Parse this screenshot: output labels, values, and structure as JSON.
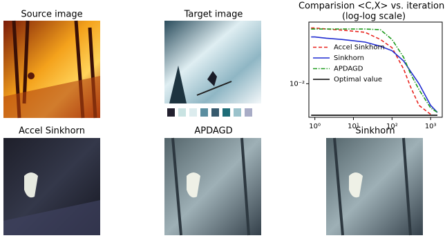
{
  "panels": [
    {
      "title": "Source image"
    },
    {
      "title": "Target image"
    },
    {
      "title": "Accel Sinkhorn"
    },
    {
      "title": "APDAGD"
    },
    {
      "title": "Sinkhorn"
    }
  ],
  "chart_data": {
    "type": "line",
    "title": "Comparision <C,X> vs. iterations",
    "subtitle": "(log-log scale)",
    "x": [
      0.8,
      1,
      2,
      5,
      10,
      20,
      50,
      100,
      200,
      300,
      500,
      1000,
      1500
    ],
    "series": [
      {
        "name": "Accel Sinkhorn",
        "color": "#e8211b",
        "linestyle": "dashed",
        "values": [
          0.027,
          0.027,
          0.0265,
          0.026,
          0.0255,
          0.025,
          0.022,
          0.019,
          0.013,
          0.0095,
          0.0068,
          0.0058,
          null
        ]
      },
      {
        "name": "Sinkhorn",
        "color": "#1f2bd0",
        "linestyle": "solid",
        "values": [
          0.023,
          0.023,
          0.0225,
          0.022,
          0.0215,
          0.021,
          0.0195,
          0.018,
          0.015,
          0.0125,
          0.01,
          0.0068,
          0.006
        ]
      },
      {
        "name": "APDAGD",
        "color": "#1c9a1c",
        "linestyle": "dashdot",
        "values": [
          0.0265,
          0.0265,
          0.0265,
          0.0265,
          0.0265,
          0.0265,
          0.0262,
          0.022,
          0.016,
          0.012,
          0.009,
          0.0065,
          0.006
        ]
      },
      {
        "name": "Optimal value",
        "color": "#000000",
        "linestyle": "solid",
        "values": [
          0.0057,
          0.0057,
          0.0057,
          0.0057,
          0.0057,
          0.0057,
          0.0057,
          0.0057,
          0.0057,
          0.0057,
          0.0057,
          0.0057,
          0.0057
        ]
      }
    ],
    "xscale": "log",
    "yscale": "log",
    "xlim": [
      0.7,
      2000
    ],
    "ylim": [
      0.0055,
      0.03
    ],
    "xticks": [
      {
        "value": 1,
        "label": "10⁰"
      },
      {
        "value": 10,
        "label": "10¹"
      },
      {
        "value": 100,
        "label": "10²"
      },
      {
        "value": 1000,
        "label": "10³"
      }
    ],
    "yticks": [
      {
        "value": 0.01,
        "label": "10⁻²"
      }
    ],
    "legend": "center left"
  }
}
